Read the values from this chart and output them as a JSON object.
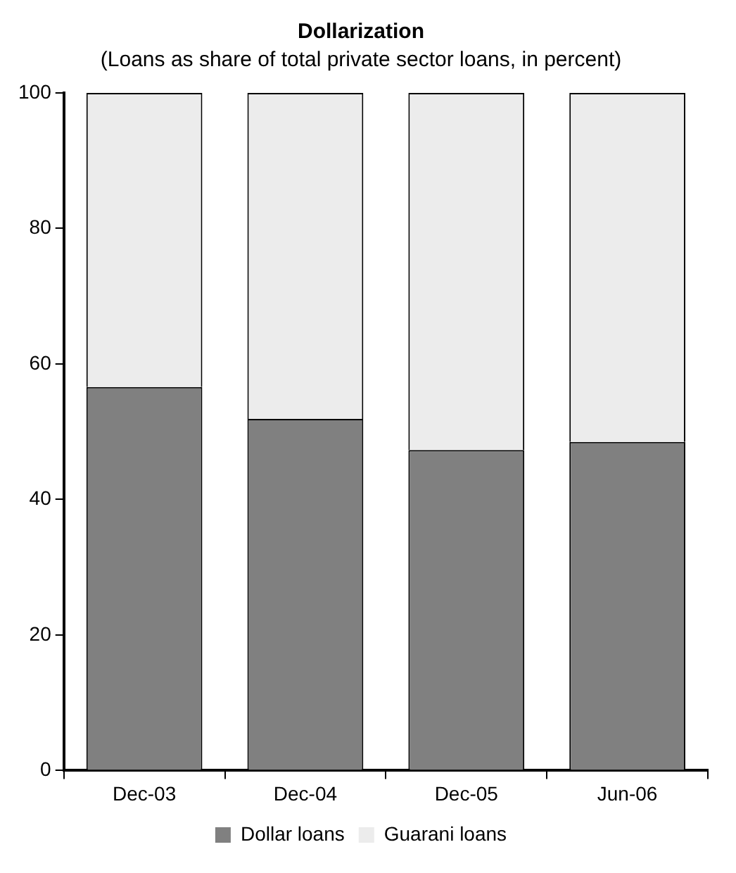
{
  "chart_data": {
    "type": "bar",
    "title": "Dollarization",
    "subtitle": "(Loans as share of total private sector loans, in percent)",
    "categories": [
      "Dec-03",
      "Dec-04",
      "Dec-05",
      "Jun-06"
    ],
    "series": [
      {
        "name": "Dollar loans",
        "color": "#808080",
        "values": [
          56.6,
          51.9,
          47.3,
          48.5
        ]
      },
      {
        "name": "Guarani loans",
        "color": "#ececec",
        "values": [
          43.4,
          48.1,
          52.7,
          51.5
        ]
      }
    ],
    "stacked": true,
    "ylim": [
      0,
      100
    ],
    "yticks": [
      0,
      20,
      40,
      60,
      80,
      100
    ],
    "grid": false,
    "legend": "bottom"
  }
}
